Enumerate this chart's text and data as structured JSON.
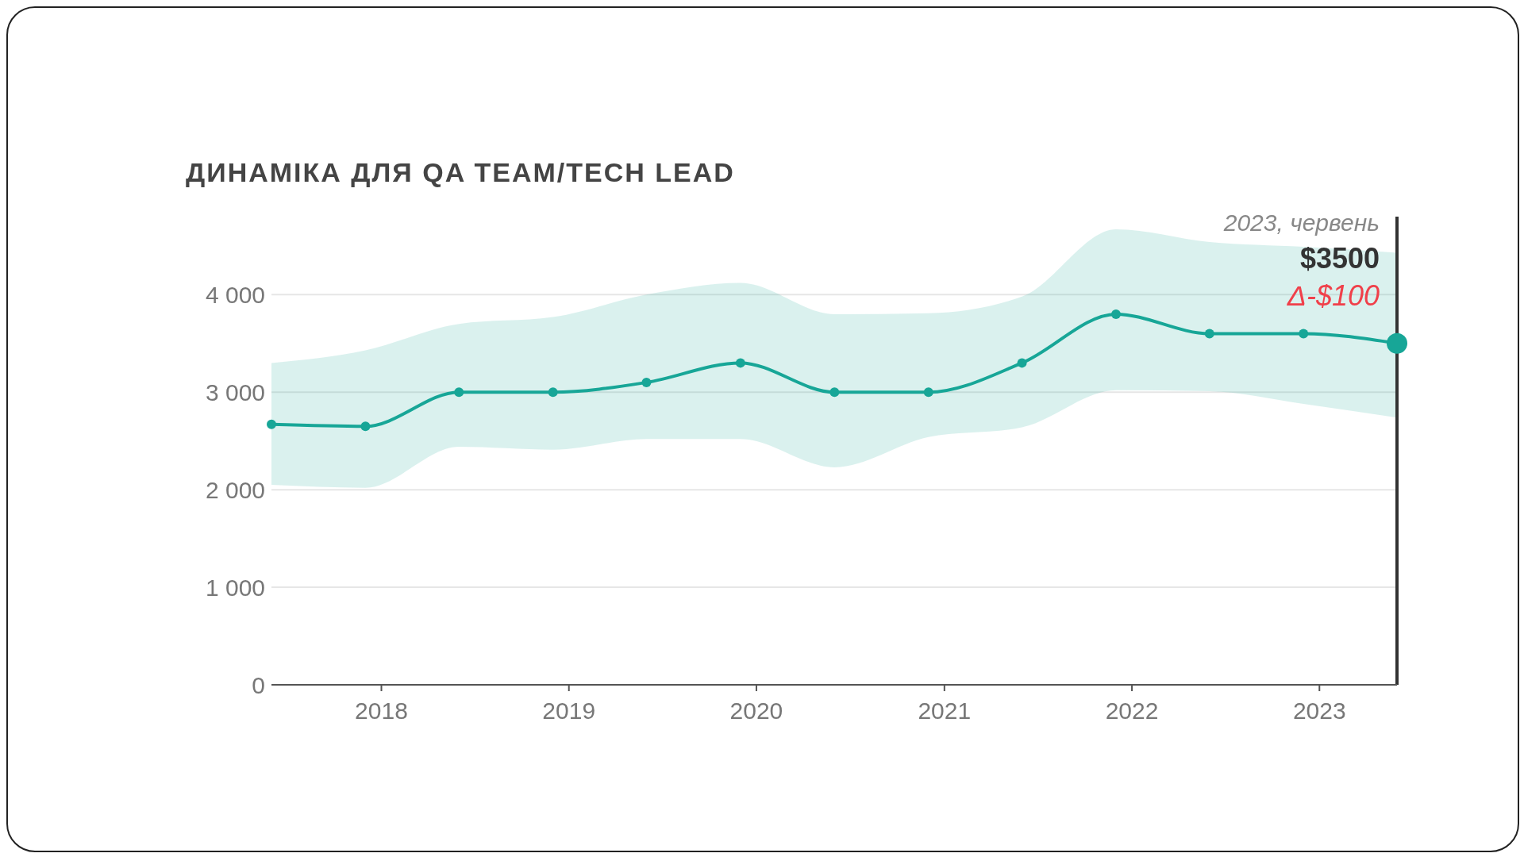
{
  "chart_data": {
    "type": "line",
    "title": "ДИНАМІКА ДЛЯ QA TEAM/TECH LEAD",
    "x": [
      "2017-06",
      "2017-12",
      "2018-06",
      "2018-12",
      "2019-06",
      "2019-12",
      "2020-06",
      "2020-12",
      "2021-06",
      "2021-12",
      "2022-06",
      "2022-12",
      "2023-06"
    ],
    "series": [
      {
        "color": "#17a697",
        "values": [
          2670,
          2650,
          3000,
          3000,
          3100,
          3300,
          3000,
          3000,
          3300,
          3800,
          3600,
          3600,
          3500
        ],
        "lower": [
          2050,
          2020,
          2440,
          2410,
          2520,
          2520,
          2230,
          2540,
          2640,
          3020,
          3010,
          2880,
          2740
        ],
        "upper": [
          3300,
          3430,
          3700,
          3770,
          4000,
          4120,
          3800,
          3810,
          3980,
          4670,
          4540,
          4490,
          4430
        ]
      }
    ],
    "xlim": [
      "2017-06",
      "2023-06"
    ],
    "xticks": [
      "2018",
      "2019",
      "2020",
      "2021",
      "2022",
      "2023"
    ],
    "ylim": [
      0,
      4800
    ],
    "yticks": [
      0,
      {
        "value": 1000,
        "label": "1 000"
      },
      {
        "value": 2000,
        "label": "2 000"
      },
      {
        "value": 3000,
        "label": "3 000"
      },
      {
        "value": 4000,
        "label": "4 000"
      }
    ],
    "grid": "y",
    "marker": "circle",
    "line_style": "solid",
    "legend": false,
    "ref_lines": [
      {
        "axis": "x",
        "value": "2023-06",
        "color": "#333333"
      }
    ],
    "annotations": [
      "2023, червень",
      {
        "text": "$3500",
        "x": "2023-06",
        "y": 3500
      },
      {
        "text": "Δ-$100",
        "x": "2023-06",
        "y": 3500
      }
    ]
  }
}
